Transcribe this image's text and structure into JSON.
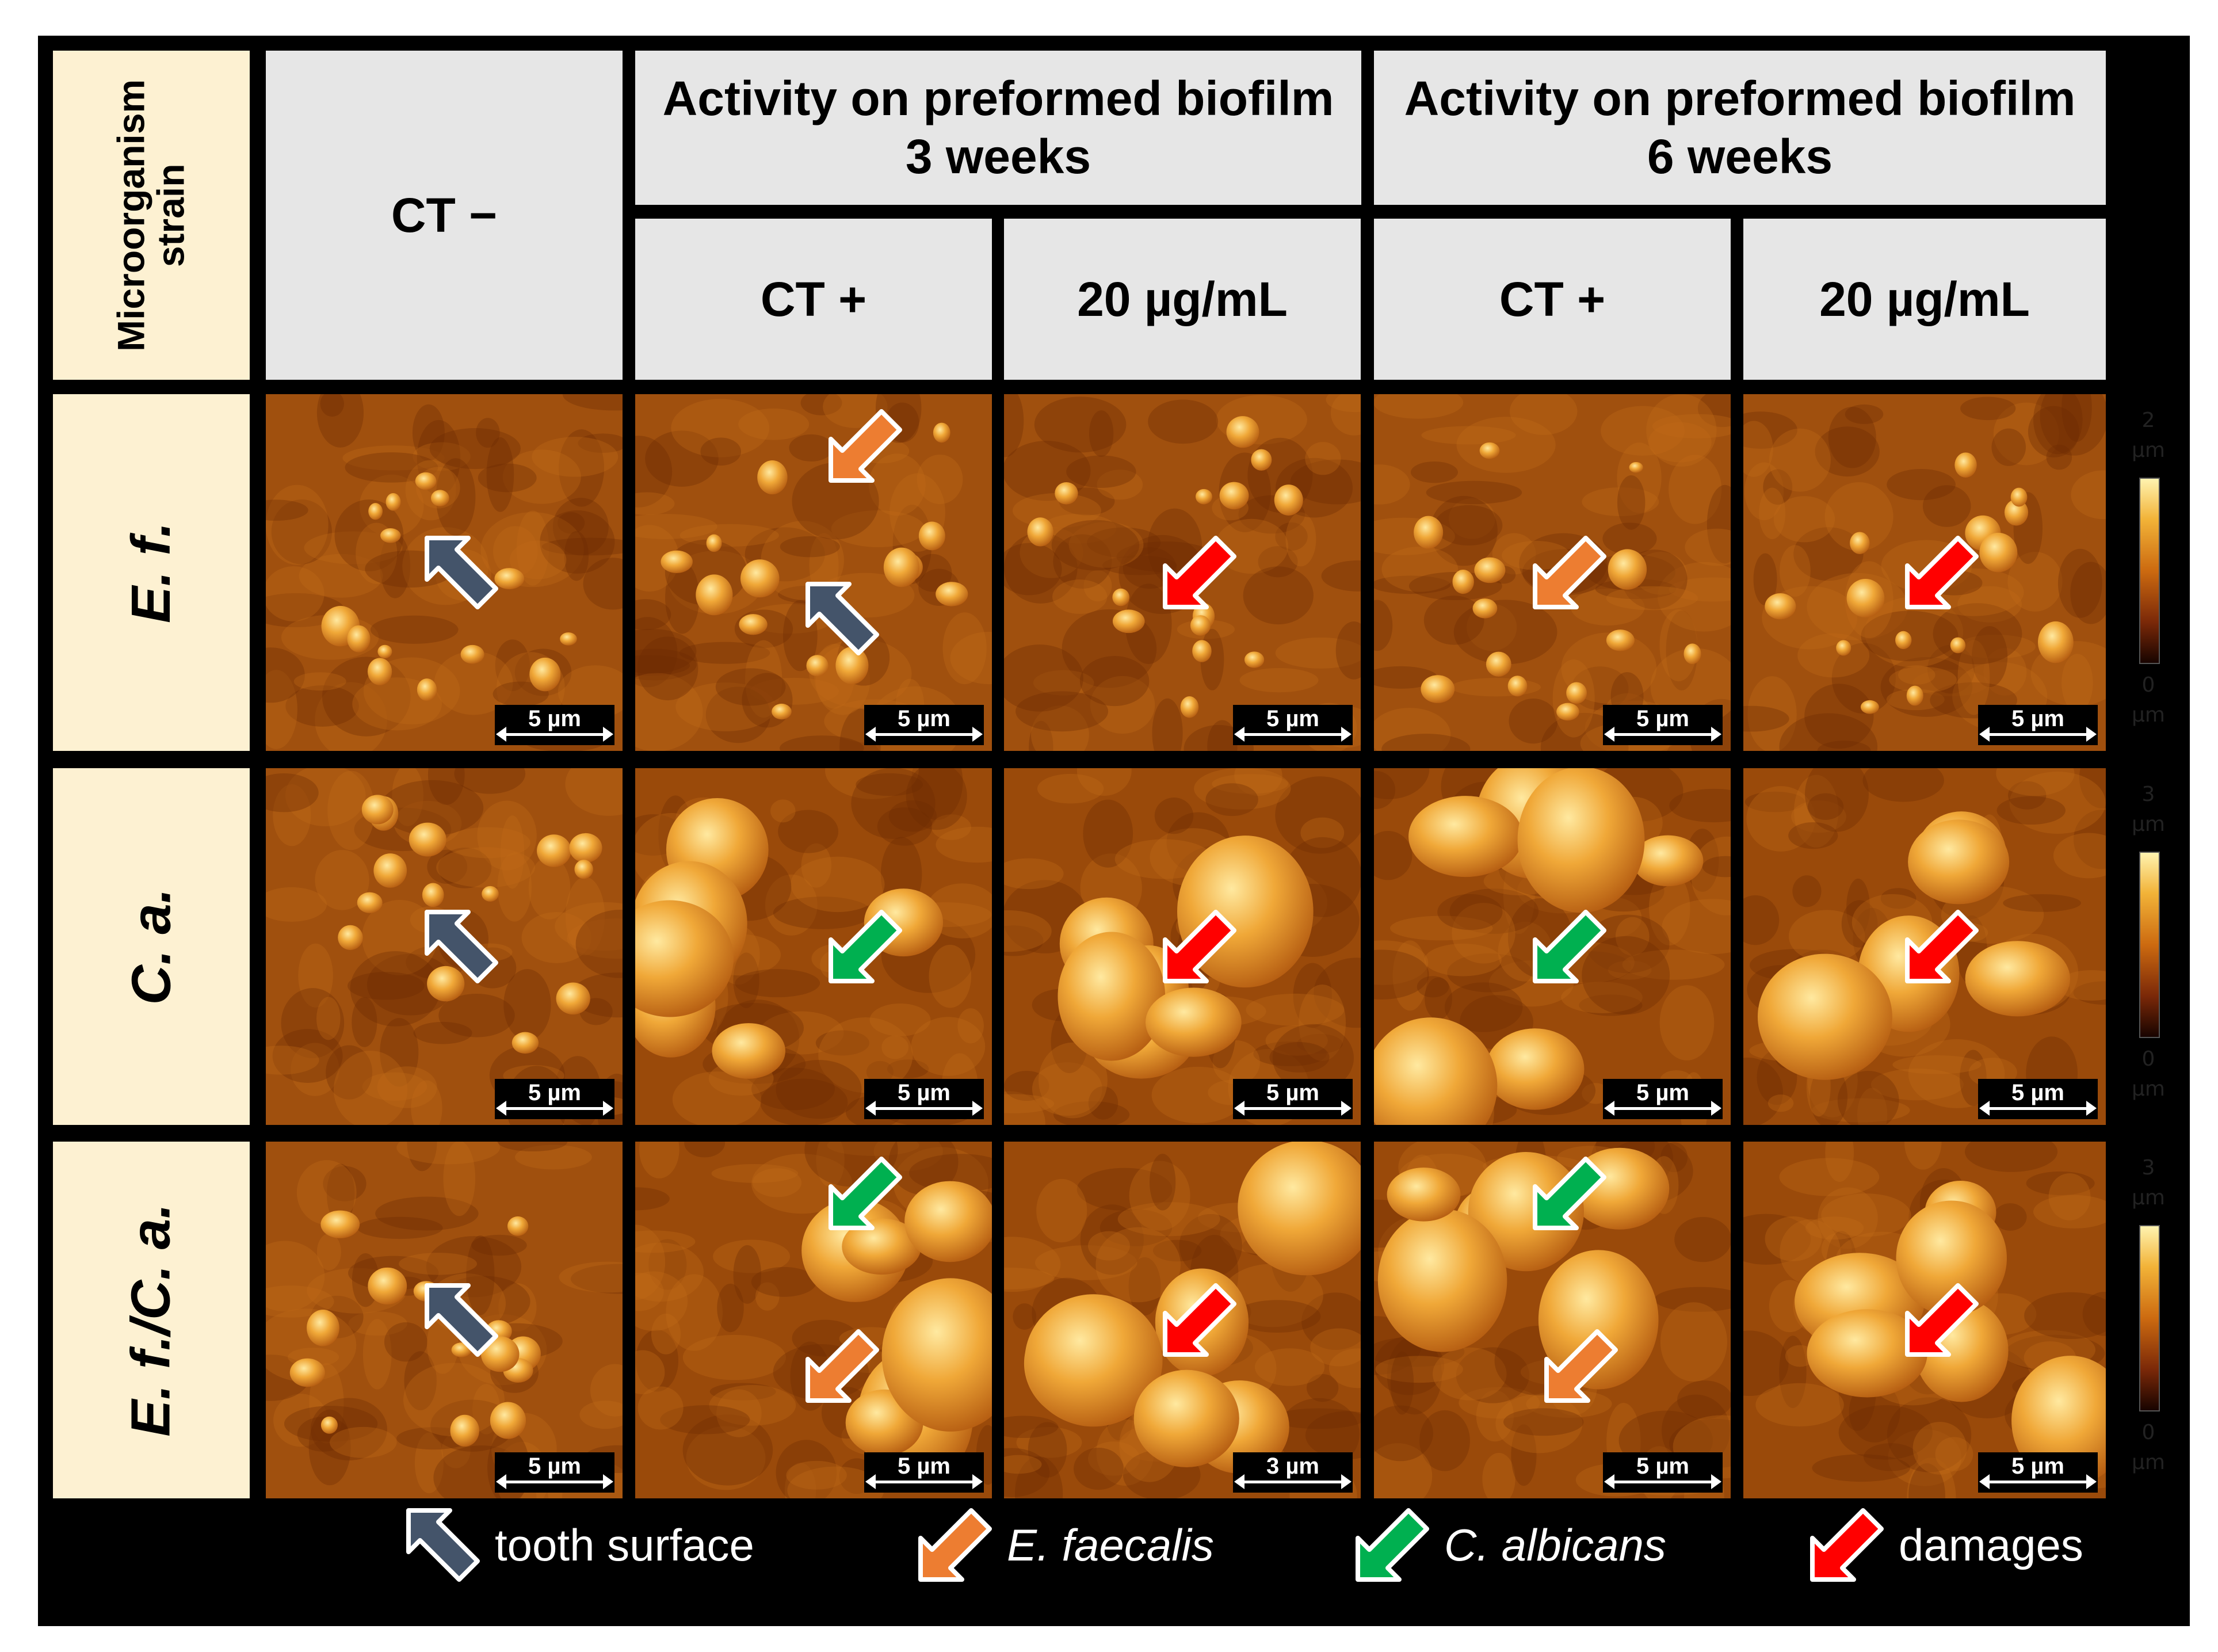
{
  "header": {
    "corner": [
      "Microorganism",
      "strain"
    ],
    "negative_control": "CT −",
    "groups": [
      [
        "Activity on preformed biofilm",
        "3 weeks"
      ],
      [
        "Activity on preformed biofilm",
        "6 weeks"
      ]
    ],
    "subcolumns": [
      "CT +",
      "20 µg/mL",
      "CT +",
      "20 µg/mL"
    ]
  },
  "strains": [
    "E. f.",
    "C. a.",
    "E. f./C. a."
  ],
  "scale_bars": [
    [
      "5 µm",
      "5 µm",
      "5 µm",
      "5 µm",
      "5 µm"
    ],
    [
      "5 µm",
      "5 µm",
      "5 µm",
      "5 µm",
      "5 µm"
    ],
    [
      "5 µm",
      "5 µm",
      "3 µm",
      "5 µm",
      "5 µm"
    ]
  ],
  "height_scales": [
    {
      "max": "2",
      "min": "0",
      "unit": "µm"
    },
    {
      "max": "3",
      "min": "0",
      "unit": "µm"
    },
    {
      "max": "3",
      "min": "0",
      "unit": "µm"
    }
  ],
  "arrows": [
    [
      "tooth-surface",
      "e-faecalis tooth-surface",
      "damages",
      "e-faecalis",
      "damages"
    ],
    [
      "tooth-surface",
      "c-albicans",
      "damages",
      "c-albicans",
      "damages"
    ],
    [
      "tooth-surface",
      "c-albicans e-faecalis",
      "damages",
      "c-albicans e-faecalis",
      "damages"
    ]
  ],
  "legend": [
    {
      "label": "tooth surface",
      "color": "#44546a",
      "icon": "tooth-surface-arrow-icon"
    },
    {
      "label": "E. faecalis",
      "color": "#ed7d31",
      "icon": "e-faecalis-arrow-icon"
    },
    {
      "label": "C. albicans",
      "color": "#00b050",
      "icon": "c-albicans-arrow-icon"
    },
    {
      "label": "damages",
      "color": "#ff0000",
      "icon": "damages-arrow-icon"
    }
  ]
}
